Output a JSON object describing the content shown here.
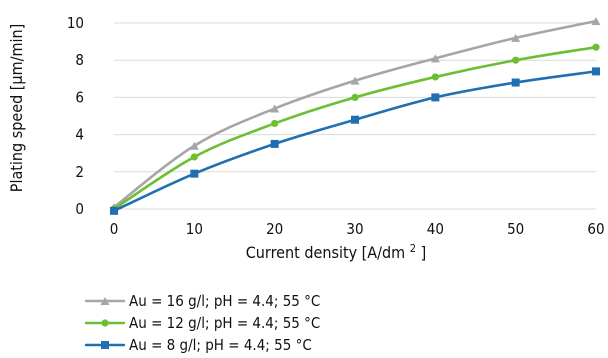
{
  "chart_data": {
    "type": "line",
    "xlabel": "Current density [A/dm",
    "xlabel_superscript": "2",
    "xlabel_suffix": "]",
    "ylabel": "Plating speed [µm/min]",
    "x": [
      0,
      10,
      20,
      30,
      40,
      50,
      60
    ],
    "xlim": [
      0,
      60
    ],
    "ylim": [
      0,
      10
    ],
    "x_ticks": [
      "0",
      "10",
      "20",
      "30",
      "40",
      "50",
      "60"
    ],
    "y_ticks": [
      "0",
      "2",
      "4",
      "6",
      "8",
      "10"
    ],
    "grid": true,
    "legend_position": "bottom-left",
    "series": [
      {
        "name": "Au = 16 g/l; pH = 4.4; 55 °C",
        "color": "#a6a6a6",
        "marker": "triangle",
        "values": [
          0.1,
          3.4,
          5.4,
          6.9,
          8.1,
          9.2,
          10.1
        ]
      },
      {
        "name": "Au = 12 g/l; pH = 4.4; 55 °C",
        "color": "#6cbf32",
        "marker": "circle",
        "values": [
          0.0,
          2.8,
          4.6,
          6.0,
          7.1,
          8.0,
          8.7
        ]
      },
      {
        "name": "Au =  8 g/l; pH = 4.4; 55 °C",
        "color": "#1f6fb2",
        "marker": "square",
        "values": [
          -0.1,
          1.9,
          3.5,
          4.8,
          6.0,
          6.8,
          7.4
        ]
      }
    ]
  }
}
